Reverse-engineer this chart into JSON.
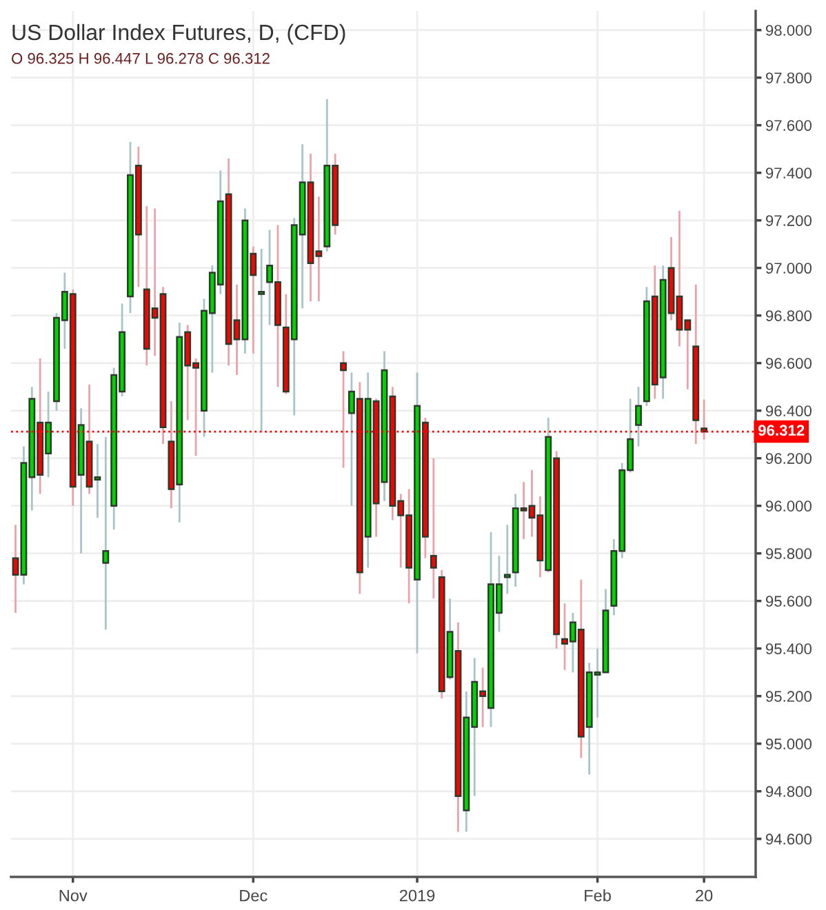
{
  "chart_data": {
    "type": "candlestick",
    "title": "US Dollar Index Futures, D, (CFD)",
    "subtitle": "O 96.325 H 96.447 L 96.278 C 96.312",
    "categories": [
      null,
      null,
      null,
      null,
      null,
      null,
      null,
      "Nov",
      null,
      null,
      null,
      null,
      null,
      null,
      null,
      null,
      null,
      null,
      null,
      null,
      null,
      null,
      null,
      null,
      null,
      null,
      null,
      null,
      null,
      "Dec",
      null,
      null,
      null,
      null,
      null,
      null,
      null,
      null,
      null,
      null,
      null,
      null,
      null,
      null,
      null,
      null,
      null,
      null,
      null,
      "2019",
      null,
      null,
      null,
      null,
      null,
      null,
      null,
      null,
      null,
      null,
      null,
      null,
      null,
      null,
      null,
      null,
      null,
      null,
      null,
      null,
      null,
      "Feb",
      null,
      null,
      null,
      null,
      null,
      null,
      null,
      null,
      null,
      null,
      null,
      null,
      "20"
    ],
    "ohlc": [
      [
        95.78,
        95.92,
        95.55,
        95.71
      ],
      [
        95.71,
        96.25,
        95.67,
        96.18
      ],
      [
        96.12,
        96.5,
        95.98,
        96.45
      ],
      [
        96.35,
        96.62,
        96.05,
        96.13
      ],
      [
        96.22,
        96.48,
        96.12,
        96.35
      ],
      [
        96.44,
        96.81,
        96.4,
        96.79
      ],
      [
        96.78,
        96.98,
        96.66,
        96.9
      ],
      [
        96.89,
        96.91,
        96.0,
        96.08
      ],
      [
        96.13,
        96.41,
        95.8,
        96.34
      ],
      [
        96.27,
        96.51,
        96.05,
        96.08
      ],
      [
        96.11,
        96.26,
        95.95,
        96.12
      ],
      [
        95.76,
        96.29,
        95.48,
        95.81
      ],
      [
        96.0,
        96.58,
        95.9,
        96.55
      ],
      [
        96.48,
        96.85,
        96.46,
        96.73
      ],
      [
        96.88,
        97.53,
        96.81,
        97.39
      ],
      [
        97.43,
        97.51,
        96.92,
        97.14
      ],
      [
        96.91,
        97.26,
        96.59,
        96.66
      ],
      [
        96.83,
        97.25,
        96.63,
        96.79
      ],
      [
        96.89,
        96.92,
        96.26,
        96.33
      ],
      [
        96.27,
        96.44,
        95.99,
        96.07
      ],
      [
        96.09,
        96.77,
        95.93,
        96.71
      ],
      [
        96.73,
        96.76,
        96.36,
        96.59
      ],
      [
        96.6,
        96.62,
        96.21,
        96.58
      ],
      [
        96.4,
        96.87,
        96.29,
        96.82
      ],
      [
        96.81,
        97.01,
        96.56,
        96.98
      ],
      [
        96.93,
        97.41,
        96.89,
        97.28
      ],
      [
        97.31,
        97.46,
        96.59,
        96.68
      ],
      [
        96.78,
        96.93,
        96.55,
        96.7
      ],
      [
        96.7,
        97.25,
        96.64,
        97.2
      ],
      [
        97.06,
        97.09,
        96.64,
        96.97
      ],
      [
        96.89,
        97.08,
        96.31,
        96.9
      ],
      [
        96.94,
        97.16,
        96.76,
        97.01
      ],
      [
        96.94,
        97.18,
        96.5,
        96.76
      ],
      [
        96.75,
        96.89,
        96.47,
        96.48
      ],
      [
        96.7,
        97.21,
        96.38,
        97.18
      ],
      [
        97.14,
        97.52,
        96.83,
        97.36
      ],
      [
        97.36,
        97.48,
        96.86,
        97.02
      ],
      [
        97.07,
        97.3,
        96.86,
        97.05
      ],
      [
        97.09,
        97.71,
        97.07,
        97.43
      ],
      [
        97.43,
        97.48,
        97.14,
        97.18
      ],
      [
        96.6,
        96.65,
        96.16,
        96.57
      ],
      [
        96.39,
        96.56,
        96.0,
        96.48
      ],
      [
        96.45,
        96.52,
        95.63,
        95.72
      ],
      [
        95.87,
        96.56,
        95.74,
        96.45
      ],
      [
        96.44,
        96.45,
        95.87,
        96.01
      ],
      [
        96.1,
        96.65,
        96.02,
        96.57
      ],
      [
        96.46,
        96.5,
        95.94,
        96.0
      ],
      [
        96.02,
        96.05,
        95.74,
        95.96
      ],
      [
        95.96,
        96.07,
        95.59,
        95.74
      ],
      [
        95.69,
        96.56,
        95.38,
        96.42
      ],
      [
        96.35,
        96.37,
        95.78,
        95.87
      ],
      [
        95.79,
        96.2,
        95.61,
        95.74
      ],
      [
        95.7,
        95.73,
        95.19,
        95.22
      ],
      [
        95.28,
        95.61,
        95.27,
        95.47
      ],
      [
        95.39,
        95.51,
        94.63,
        94.78
      ],
      [
        94.72,
        95.22,
        94.63,
        95.11
      ],
      [
        95.07,
        95.36,
        94.78,
        95.26
      ],
      [
        95.22,
        95.32,
        95.07,
        95.2
      ],
      [
        95.15,
        95.89,
        95.07,
        95.67
      ],
      [
        95.55,
        95.79,
        95.47,
        95.67
      ],
      [
        95.7,
        95.92,
        95.63,
        95.71
      ],
      [
        95.72,
        96.05,
        95.66,
        95.99
      ],
      [
        95.99,
        96.1,
        95.86,
        95.98
      ],
      [
        96.0,
        96.15,
        95.87,
        95.95
      ],
      [
        95.96,
        96.04,
        95.7,
        95.77
      ],
      [
        95.73,
        96.37,
        95.72,
        96.29
      ],
      [
        96.2,
        96.23,
        95.4,
        95.46
      ],
      [
        95.44,
        95.59,
        95.31,
        95.42
      ],
      [
        95.43,
        95.55,
        95.3,
        95.51
      ],
      [
        95.48,
        95.69,
        94.94,
        95.03
      ],
      [
        95.07,
        95.34,
        94.87,
        95.3
      ],
      [
        95.29,
        95.4,
        95.11,
        95.3
      ],
      [
        95.3,
        95.65,
        95.3,
        95.56
      ],
      [
        95.58,
        95.86,
        95.54,
        95.81
      ],
      [
        95.81,
        96.18,
        95.78,
        96.15
      ],
      [
        96.15,
        96.45,
        96.14,
        96.28
      ],
      [
        96.34,
        96.5,
        96.25,
        96.42
      ],
      [
        96.44,
        96.92,
        96.42,
        96.86
      ],
      [
        96.88,
        97.01,
        96.45,
        96.51
      ],
      [
        96.54,
        97.01,
        96.45,
        96.95
      ],
      [
        97.0,
        97.13,
        96.78,
        96.81
      ],
      [
        96.88,
        97.24,
        96.67,
        96.74
      ],
      [
        96.78,
        96.78,
        96.49,
        96.74
      ],
      [
        96.67,
        96.93,
        96.26,
        96.36
      ],
      [
        96.325,
        96.447,
        96.278,
        96.312
      ]
    ],
    "ylim": [
      94.44,
      98.08
    ],
    "yticks": [
      {
        "value": 94.6,
        "label": "94.600"
      },
      {
        "value": 94.8,
        "label": "94.800"
      },
      {
        "value": 95.0,
        "label": "95.000"
      },
      {
        "value": 95.2,
        "label": "95.200"
      },
      {
        "value": 95.4,
        "label": "95.400"
      },
      {
        "value": 95.6,
        "label": "95.600"
      },
      {
        "value": 95.8,
        "label": "95.800"
      },
      {
        "value": 96.0,
        "label": "96.000"
      },
      {
        "value": 96.2,
        "label": "96.200"
      },
      {
        "value": 96.4,
        "label": "96.400"
      },
      {
        "value": 96.6,
        "label": "96.600"
      },
      {
        "value": 96.8,
        "label": "96.800"
      },
      {
        "value": 97.0,
        "label": "97.000"
      },
      {
        "value": 97.2,
        "label": "97.200"
      },
      {
        "value": 97.4,
        "label": "97.400"
      },
      {
        "value": 97.6,
        "label": "97.600"
      },
      {
        "value": 97.8,
        "label": "97.800"
      },
      {
        "value": 98.0,
        "label": "98.000"
      }
    ],
    "ref_lines": [
      {
        "axis": "y",
        "value": 96.312,
        "label": "96.312",
        "color": "#ff0000",
        "line_style": "dotted"
      }
    ],
    "grid": true,
    "legend": false
  }
}
